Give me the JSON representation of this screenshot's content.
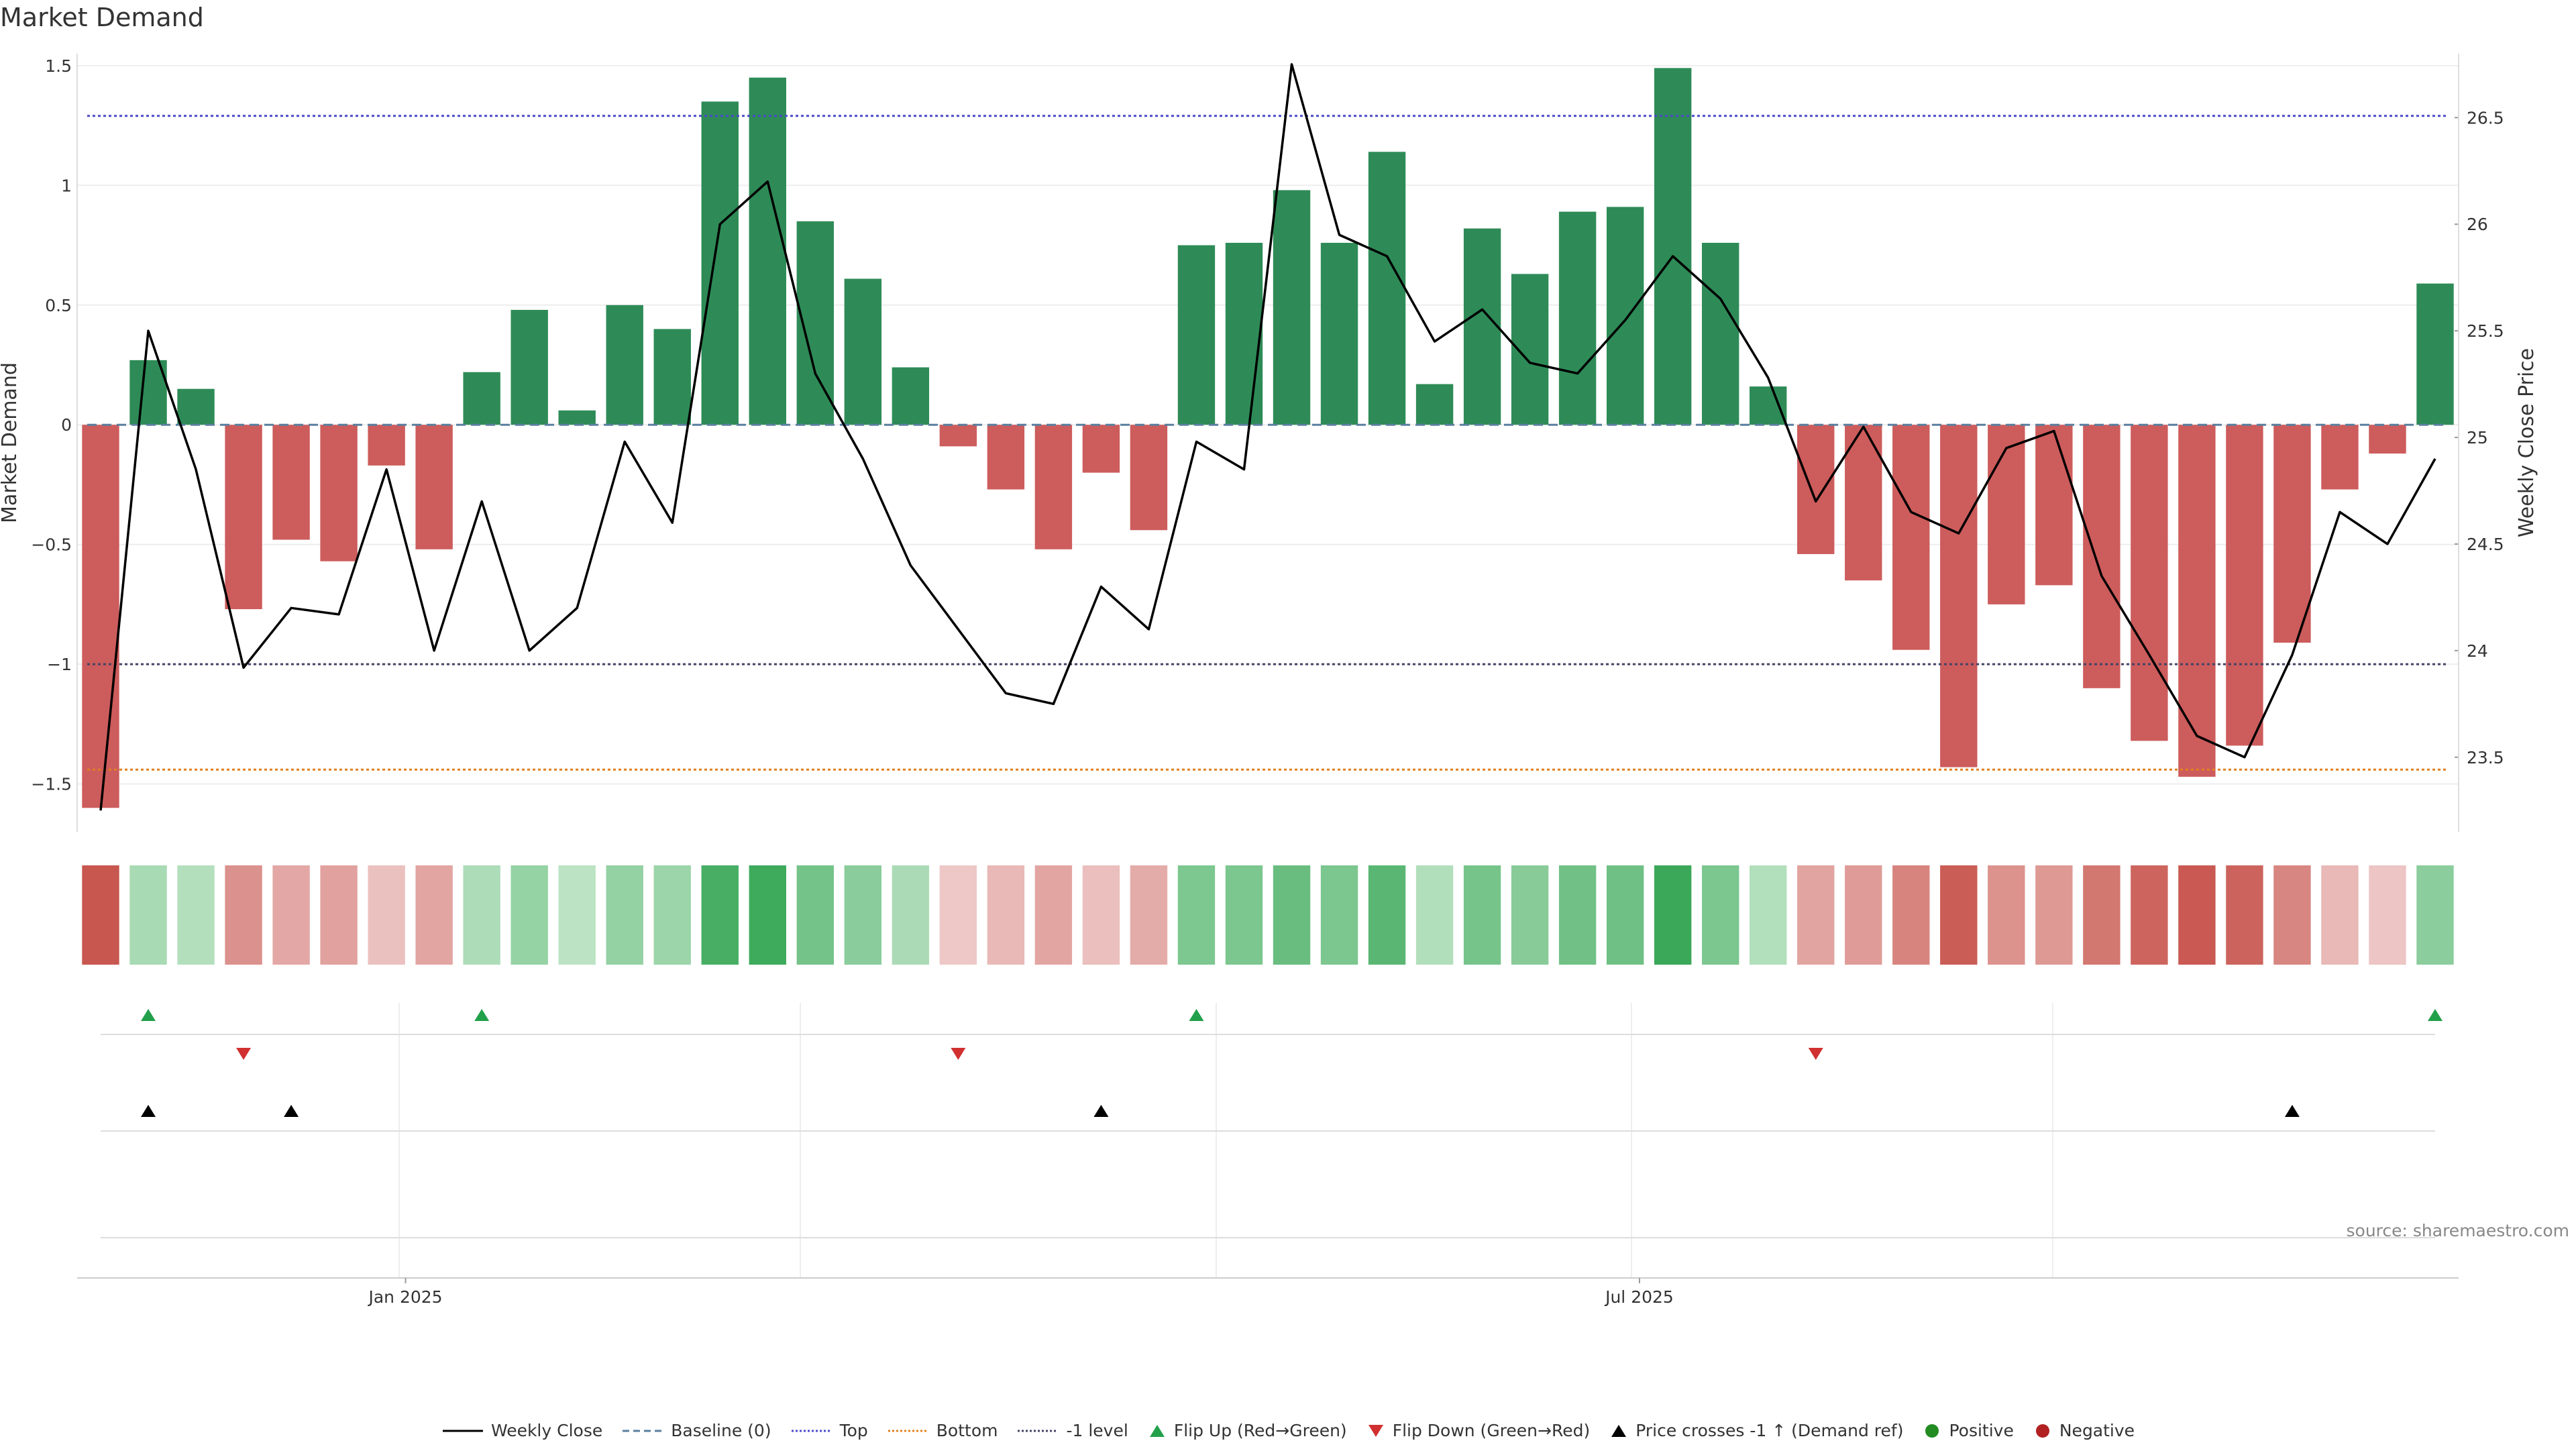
{
  "title": "Market Demand",
  "source": "source: sharemaestro.com",
  "chart_data": {
    "type": "bar",
    "title": "Market Demand",
    "ylabel": "Market Demand",
    "y2label": "Weekly Close Price",
    "ylim": [
      -1.7,
      1.55
    ],
    "y2lim": [
      23.15,
      26.8
    ],
    "yticks": [
      1.5,
      1,
      0.5,
      0,
      -0.5,
      -1,
      -1.5
    ],
    "yticklabels": [
      "1.5",
      "1",
      "0.5",
      "0",
      "−0.5",
      "−1",
      "−1.5"
    ],
    "y2ticks": [
      26.5,
      26,
      25.5,
      25,
      24.5,
      24,
      23.5
    ],
    "y2ticklabels": [
      "26.5",
      "26",
      "25.5",
      "25",
      "24.5",
      "24",
      "23.5"
    ],
    "xticklabels": [
      {
        "index": 6.4,
        "label": "Jan 2025"
      },
      {
        "index": 32.3,
        "label": "Jul 2025"
      }
    ],
    "reference_lines": [
      {
        "name": "Top",
        "value": 1.29,
        "color": "#4a4ac8",
        "dash": "4,4"
      },
      {
        "name": "Baseline (0)",
        "value": 0,
        "color": "#5a7fa0",
        "dash": "14,8"
      },
      {
        "name": "-1 level",
        "value": -1,
        "color": "#444466",
        "dash": "4,4"
      },
      {
        "name": "Bottom",
        "value": -1.44,
        "color": "#e08020",
        "dash": "4,4"
      }
    ],
    "demand": [
      -1.6,
      0.27,
      0.15,
      -0.77,
      -0.48,
      -0.57,
      -0.17,
      -0.52,
      0.22,
      0.48,
      0.06,
      0.5,
      0.4,
      1.35,
      1.45,
      0.85,
      0.61,
      0.24,
      -0.09,
      -0.27,
      -0.52,
      -0.2,
      -0.44,
      0.75,
      0.76,
      0.98,
      0.76,
      1.14,
      0.17,
      0.82,
      0.63,
      0.89,
      0.91,
      1.49,
      0.76,
      0.16,
      -0.54,
      -0.65,
      -0.94,
      -1.43,
      -0.75,
      -0.67,
      -1.1,
      -1.32,
      -1.47,
      -1.34,
      -0.91,
      -0.27,
      -0.12,
      0.59
    ],
    "weekly_close": [
      23.25,
      25.5,
      24.85,
      23.92,
      24.2,
      24.17,
      24.85,
      24.0,
      24.7,
      24.0,
      24.2,
      24.98,
      24.6,
      26.0,
      26.2,
      25.3,
      24.9,
      24.4,
      24.1,
      23.8,
      23.75,
      24.3,
      24.1,
      24.98,
      24.85,
      26.75,
      25.95,
      25.85,
      25.45,
      25.6,
      25.35,
      25.3,
      25.55,
      25.85,
      25.65,
      25.28,
      24.7,
      25.05,
      24.65,
      24.55,
      24.95,
      25.03,
      24.35,
      23.98,
      23.6,
      23.5,
      23.98,
      24.65,
      24.5,
      24.9
    ],
    "heat_strip": [
      -1.6,
      0.27,
      0.15,
      -0.77,
      -0.48,
      -0.57,
      -0.17,
      -0.52,
      0.22,
      0.48,
      0.06,
      0.5,
      0.4,
      1.35,
      1.45,
      0.85,
      0.61,
      0.24,
      -0.09,
      -0.27,
      -0.52,
      -0.2,
      -0.44,
      0.75,
      0.76,
      0.98,
      0.76,
      1.14,
      0.17,
      0.82,
      0.63,
      0.89,
      0.91,
      1.49,
      0.76,
      0.16,
      -0.54,
      -0.65,
      -0.94,
      -1.43,
      -0.75,
      -0.67,
      -1.1,
      -1.32,
      -1.47,
      -1.34,
      -0.91,
      -0.27,
      -0.12,
      0.59
    ],
    "flip_up_indices": [
      1,
      8,
      23,
      49
    ],
    "flip_down_indices": [
      3,
      18,
      36
    ],
    "price_cross_indices": [
      1,
      4,
      21,
      46
    ],
    "colors": {
      "positive": "#2e8b57",
      "negative": "#cd5c5c",
      "price": "#000000",
      "flip_up": "#22a04a",
      "flip_down": "#d03030",
      "grid": "#eeeeee"
    }
  },
  "legend": [
    {
      "label": "Weekly Close",
      "kind": "line",
      "color": "#000000",
      "dash": ""
    },
    {
      "label": "Baseline (0)",
      "kind": "line",
      "color": "#5a7fa0",
      "dash": "10,6"
    },
    {
      "label": "Top",
      "kind": "line",
      "color": "#4a4ac8",
      "dash": "3,3"
    },
    {
      "label": "Bottom",
      "kind": "line",
      "color": "#e08020",
      "dash": "3,3"
    },
    {
      "label": "-1 level",
      "kind": "line",
      "color": "#444466",
      "dash": "3,3"
    },
    {
      "label": "Flip Up (Red→Green)",
      "kind": "tri-up",
      "color": "#22a04a"
    },
    {
      "label": "Flip Down (Green→Red)",
      "kind": "tri-down",
      "color": "#d03030"
    },
    {
      "label": "Price crosses -1 ↑ (Demand ref)",
      "kind": "tri-up",
      "color": "#000000"
    },
    {
      "label": "Positive",
      "kind": "dot",
      "color": "#228b22"
    },
    {
      "label": "Negative",
      "kind": "dot",
      "color": "#b22222"
    }
  ]
}
